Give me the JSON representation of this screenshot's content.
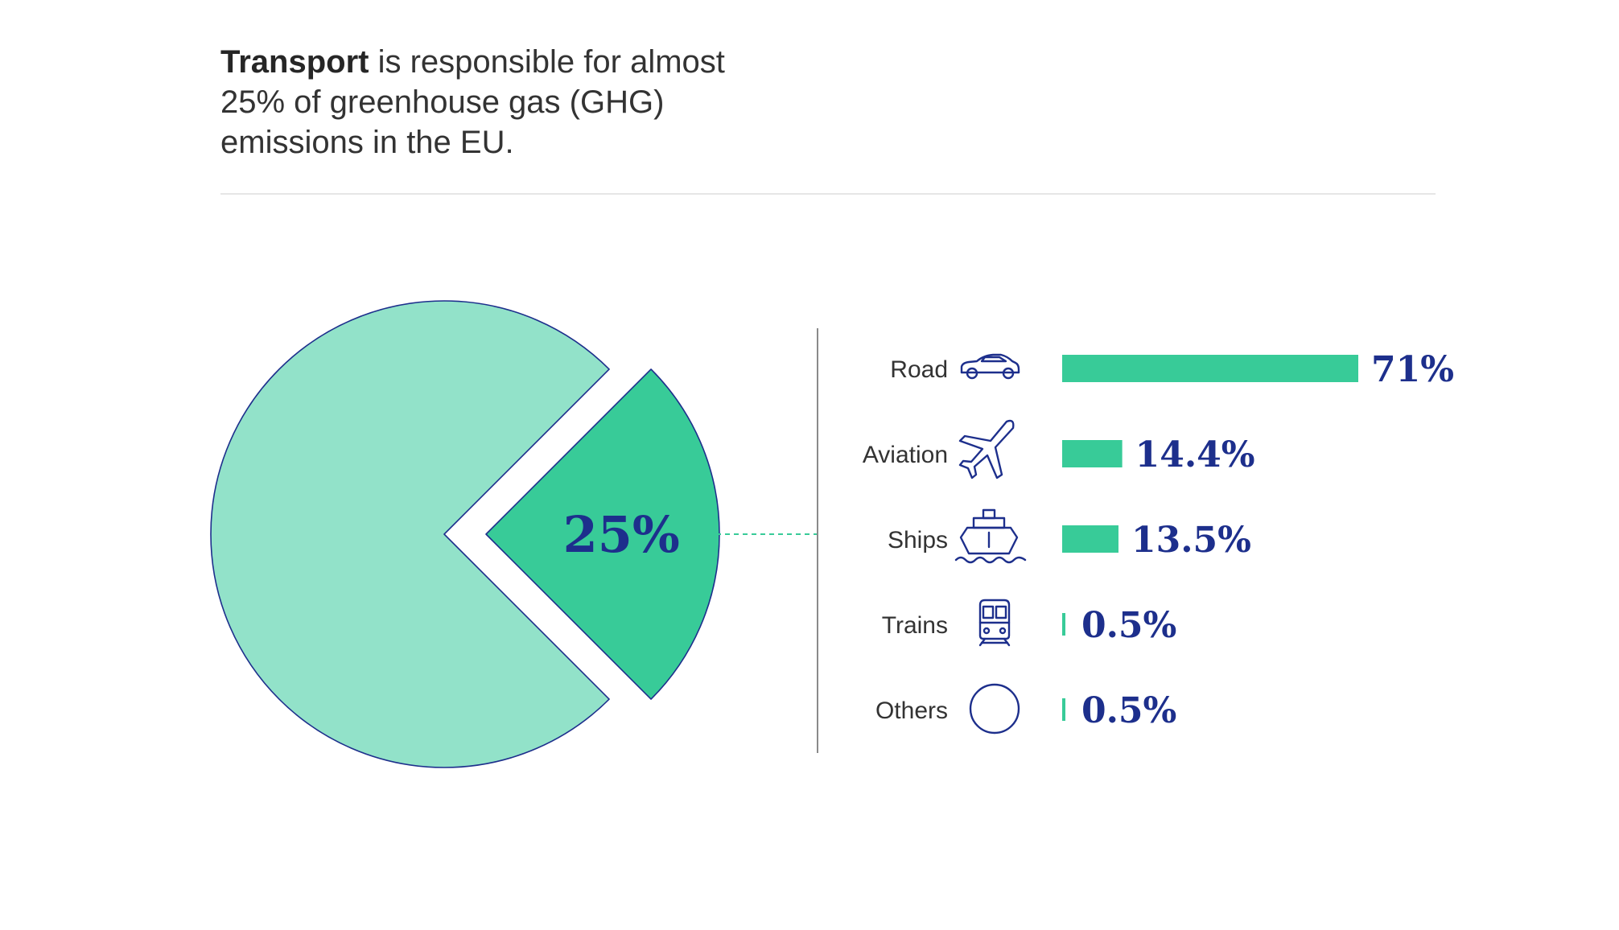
{
  "headline": {
    "strong": "Transport",
    "rest": " is responsible for almost 25% of greenhouse gas (GHG) emissions in the EU."
  },
  "colors": {
    "pie_main": "#92e2c9",
    "pie_slice": "#38cb98",
    "bar": "#38cb98",
    "outline": "#1d2f8c",
    "value_text": "#1d2f8c",
    "label_text": "#333333"
  },
  "chart_data": [
    {
      "type": "pie",
      "slices": [
        {
          "value": 25,
          "label": "25%",
          "color": "#38cb98",
          "exploded": true
        },
        {
          "value": 75,
          "label": "",
          "color": "#92e2c9",
          "exploded": false
        }
      ]
    },
    {
      "type": "bar",
      "orientation": "horizontal",
      "categories": [
        "Road",
        "Aviation",
        "Ships",
        "Trains",
        "Others"
      ],
      "values": [
        71,
        14.4,
        13.5,
        0.5,
        0.5
      ],
      "value_labels": [
        "71%",
        "14.4%",
        "13.5%",
        "0.5%",
        "0.5%"
      ],
      "icons": [
        "car-icon",
        "airplane-icon",
        "ship-icon",
        "train-icon",
        "circle-icon"
      ],
      "xlim": [
        0,
        71
      ]
    }
  ]
}
